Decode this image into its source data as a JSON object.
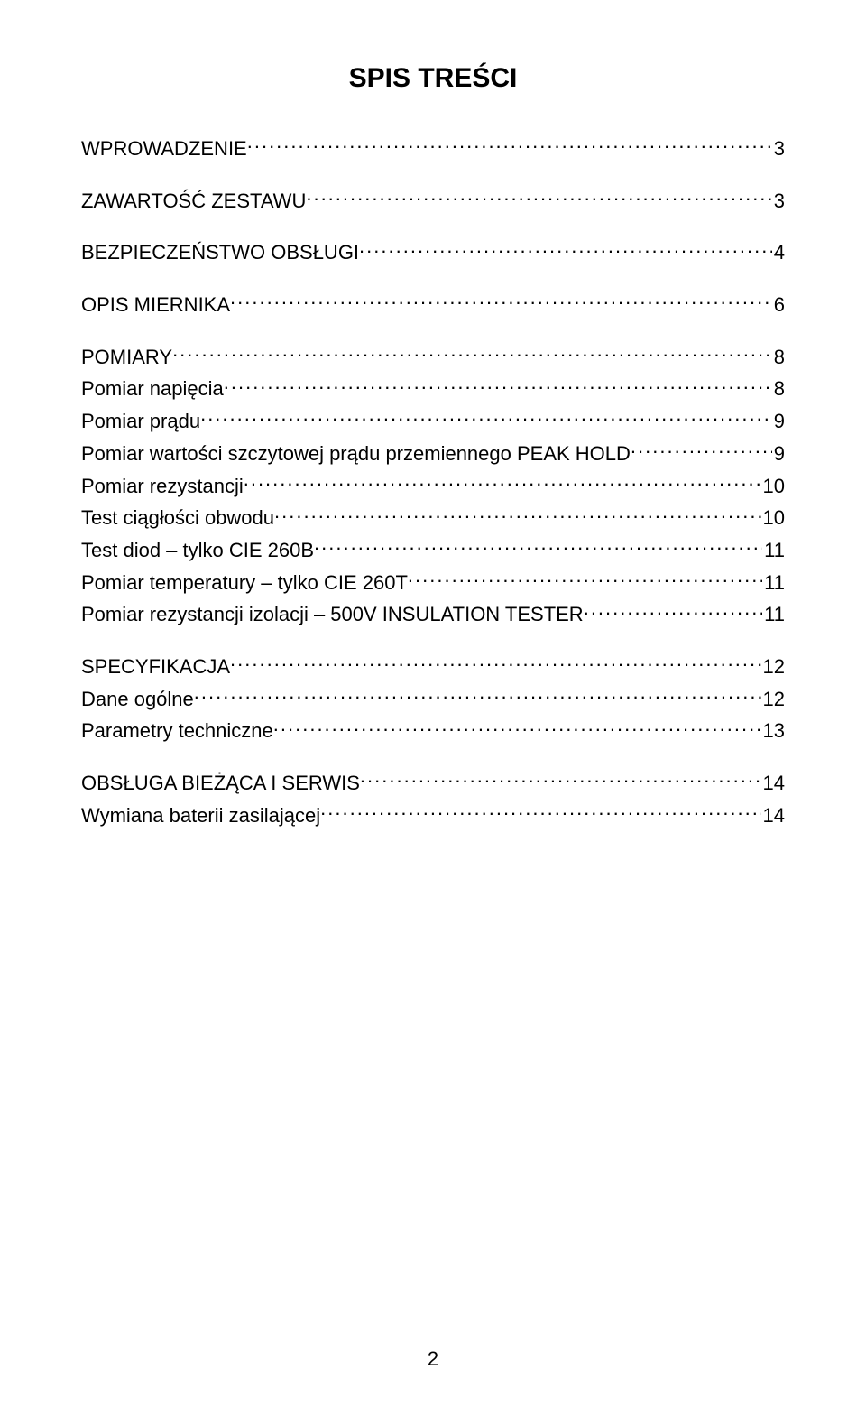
{
  "colors": {
    "background": "#ffffff",
    "text": "#000000"
  },
  "typography": {
    "body_family": "Arial, Helvetica, sans-serif",
    "title_fontsize_pt": 22,
    "body_fontsize_pt": 16
  },
  "title": "SPIS TREŚCI",
  "toc": [
    {
      "label": "WPROWADZENIE",
      "page": "3",
      "level": 0
    },
    {
      "label": "ZAWARTOŚĆ ZESTAWU",
      "page": "3",
      "level": 0
    },
    {
      "label": "BEZPIECZEŃSTWO OBSŁUGI",
      "page": "4",
      "level": 0
    },
    {
      "label": "OPIS MIERNIKA",
      "page": "6",
      "level": 0
    },
    {
      "label": "POMIARY",
      "page": "8",
      "level": 0
    },
    {
      "label": "Pomiar napięcia",
      "page": "8",
      "level": 1
    },
    {
      "label": "Pomiar prądu",
      "page": "9",
      "level": 1
    },
    {
      "label": "Pomiar wartości szczytowej prądu przemiennego PEAK HOLD",
      "page": "9",
      "level": 1
    },
    {
      "label": "Pomiar rezystancji",
      "page": "10",
      "level": 1
    },
    {
      "label": "Test ciągłości obwodu",
      "page": "10",
      "level": 1
    },
    {
      "label": "Test diod – tylko CIE 260B",
      "page": "11",
      "level": 1
    },
    {
      "label": "Pomiar temperatury – tylko CIE 260T",
      "page": "11",
      "level": 1
    },
    {
      "label": "Pomiar rezystancji izolacji – 500V INSULATION TESTER",
      "page": "11",
      "level": 1
    },
    {
      "label": "SPECYFIKACJA",
      "page": "12",
      "level": 0
    },
    {
      "label": "Dane ogólne",
      "page": "12",
      "level": 1
    },
    {
      "label": "Parametry techniczne",
      "page": "13",
      "level": 1
    },
    {
      "label": "OBSŁUGA BIEŻĄCA I SERWIS",
      "page": "14",
      "level": 0
    },
    {
      "label": "Wymiana baterii zasilającej",
      "page": "14",
      "level": 1
    }
  ],
  "page_number": "2"
}
